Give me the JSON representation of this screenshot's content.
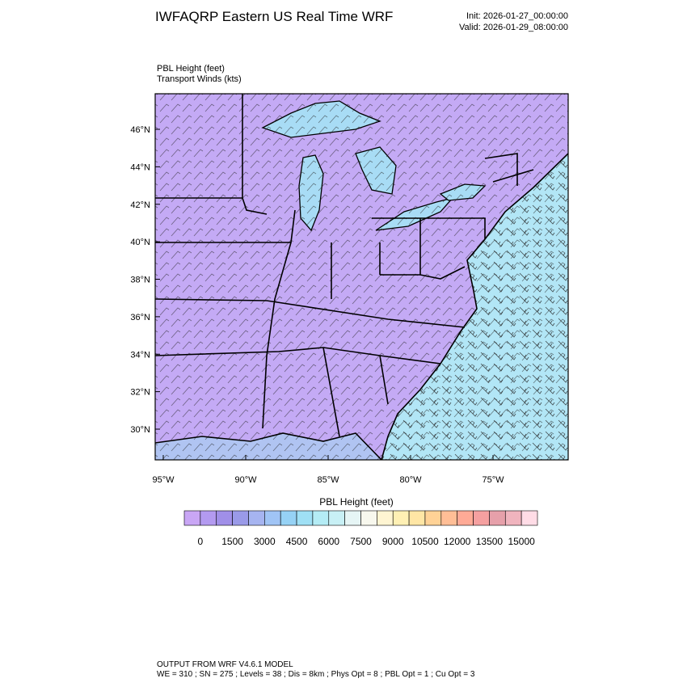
{
  "header": {
    "title": "IWFAQRP Eastern US Real Time WRF",
    "init": "Init: 2026-01-27_00:00:00",
    "valid": "Valid: 2026-01-29_08:00:00"
  },
  "map": {
    "field_label": "PBL Height   (feet)",
    "vector_label": "Transport Winds   (kts)",
    "lat_ticks": [
      {
        "value": 46,
        "label": "46°N"
      },
      {
        "value": 44,
        "label": "44°N"
      },
      {
        "value": 42,
        "label": "42°N"
      },
      {
        "value": 40,
        "label": "40°N"
      },
      {
        "value": 38,
        "label": "38°N"
      },
      {
        "value": 36,
        "label": "36°N"
      },
      {
        "value": 34,
        "label": "34°N"
      },
      {
        "value": 32,
        "label": "32°N"
      },
      {
        "value": 30,
        "label": "30°N"
      }
    ],
    "lon_ticks": [
      {
        "value": -95,
        "label": "95°W"
      },
      {
        "value": -90,
        "label": "90°W"
      },
      {
        "value": -85,
        "label": "85°W"
      },
      {
        "value": -80,
        "label": "80°W"
      },
      {
        "value": -75,
        "label": "75°W"
      }
    ]
  },
  "colorbar": {
    "title": "PBL Height  (feet)",
    "labels": [
      0,
      1500,
      3000,
      4500,
      6000,
      7500,
      9000,
      10500,
      12000,
      13500,
      15000
    ],
    "colors": [
      "#c9a6f5",
      "#b39af0",
      "#a08fe8",
      "#9a9ae8",
      "#a6b4f0",
      "#a0c4f5",
      "#96d2f5",
      "#9fe0f5",
      "#b4ecf5",
      "#c8f0f5",
      "#e6f5f5",
      "#f8f8ee",
      "#fff5d2",
      "#fff0b4",
      "#ffe6a5",
      "#ffd296",
      "#ffbe96",
      "#ffaa96",
      "#f5a0a0",
      "#e6a0aa",
      "#f0b4be",
      "#ffdce6"
    ]
  },
  "footer": {
    "line1": "OUTPUT FROM WRF V4.6.1 MODEL",
    "line2": "WE = 310 ; SN = 275 ; Levels = 38 ; Dis = 8km ; Phys Opt = 8 ; PBL Opt = 1 ; Cu Opt = 3"
  }
}
